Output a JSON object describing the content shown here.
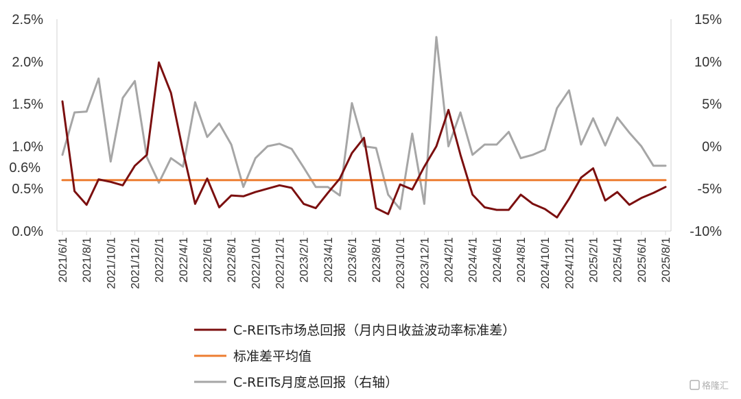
{
  "chart_data": {
    "type": "line",
    "title": "",
    "x": [
      "2021/6/1",
      "2021/7/1",
      "2021/8/1",
      "2021/9/1",
      "2021/10/1",
      "2021/11/1",
      "2021/12/1",
      "2022/1/1",
      "2022/2/1",
      "2022/3/1",
      "2022/4/1",
      "2022/5/1",
      "2022/6/1",
      "2022/7/1",
      "2022/8/1",
      "2022/9/1",
      "2022/10/1",
      "2022/11/1",
      "2022/12/1",
      "2023/1/1",
      "2023/2/1",
      "2023/3/1",
      "2023/4/1",
      "2023/5/1",
      "2023/6/1",
      "2023/7/1",
      "2023/8/1",
      "2023/9/1",
      "2023/10/1",
      "2023/11/1",
      "2023/12/1",
      "2024/1/1",
      "2024/2/1",
      "2024/3/1",
      "2024/4/1",
      "2024/5/1",
      "2024/6/1",
      "2024/7/1",
      "2024/8/1",
      "2024/9/1",
      "2024/10/1",
      "2024/11/1",
      "2024/12/1",
      "2025/1/1",
      "2025/2/1",
      "2025/3/1",
      "2025/4/1",
      "2025/5/1",
      "2025/6/1",
      "2025/7/1",
      "2025/8/1"
    ],
    "x_tick_labels": [
      "2021/6/1",
      "2021/8/1",
      "2021/10/1",
      "2021/12/1",
      "2022/2/1",
      "2022/4/1",
      "2022/6/1",
      "2022/8/1",
      "2022/10/1",
      "2022/12/1",
      "2023/2/1",
      "2023/4/1",
      "2023/6/1",
      "2023/8/1",
      "2023/10/1",
      "2023/12/1",
      "2024/2/1",
      "2024/4/1",
      "2024/6/1",
      "2024/8/1",
      "2024/10/1",
      "2024/12/1",
      "2025/2/1",
      "2025/4/1",
      "2025/6/1",
      "2025/8/1"
    ],
    "left_axis": {
      "ylim": [
        0,
        2.5
      ],
      "ticks": [
        "0.0%",
        "0.5%",
        "1.0%",
        "1.5%",
        "2.0%",
        "2.5%"
      ],
      "extra_tick": "0.6%",
      "extra_tick_value": 0.6
    },
    "right_axis": {
      "ylim": [
        -10,
        15
      ],
      "ticks": [
        "-10%",
        "-5%",
        "0%",
        "5%",
        "10%",
        "15%"
      ]
    },
    "grid": false,
    "legend_position": "bottom",
    "series": [
      {
        "name": "C-REITs市场总回报（月内日收益波动率标准差）",
        "axis": "left",
        "color": "#7b0f0f",
        "values": [
          1.53,
          0.47,
          0.31,
          0.61,
          0.58,
          0.54,
          0.77,
          0.9,
          1.99,
          1.63,
          0.94,
          0.32,
          0.62,
          0.28,
          0.42,
          0.41,
          0.46,
          0.5,
          0.54,
          0.51,
          0.32,
          0.27,
          0.45,
          0.62,
          0.92,
          1.1,
          0.27,
          0.2,
          0.55,
          0.49,
          0.76,
          1.0,
          1.43,
          0.9,
          0.43,
          0.28,
          0.25,
          0.25,
          0.43,
          0.32,
          0.26,
          0.16,
          0.38,
          0.63,
          0.74,
          0.36,
          0.46,
          0.31,
          0.39,
          0.45,
          0.52
        ]
      },
      {
        "name": "标准差平均值",
        "axis": "left",
        "color": "#ed7d31",
        "values": [
          0.6,
          0.6,
          0.6,
          0.6,
          0.6,
          0.6,
          0.6,
          0.6,
          0.6,
          0.6,
          0.6,
          0.6,
          0.6,
          0.6,
          0.6,
          0.6,
          0.6,
          0.6,
          0.6,
          0.6,
          0.6,
          0.6,
          0.6,
          0.6,
          0.6,
          0.6,
          0.6,
          0.6,
          0.6,
          0.6,
          0.6,
          0.6,
          0.6,
          0.6,
          0.6,
          0.6,
          0.6,
          0.6,
          0.6,
          0.6,
          0.6,
          0.6,
          0.6,
          0.6,
          0.6,
          0.6,
          0.6,
          0.6,
          0.6,
          0.6,
          0.6
        ]
      },
      {
        "name": "C-REITs月度总回报（右轴）",
        "axis": "right",
        "color": "#a6a6a6",
        "values": [
          -1.0,
          4.0,
          4.1,
          8.0,
          -1.8,
          5.7,
          7.7,
          -1.3,
          -4.3,
          -1.4,
          -2.4,
          5.2,
          1.1,
          2.7,
          0.2,
          -4.8,
          -1.4,
          0.0,
          0.3,
          -0.3,
          -2.5,
          -4.8,
          -4.8,
          -5.8,
          5.1,
          0.0,
          -0.2,
          -5.7,
          -7.4,
          1.5,
          -6.8,
          12.9,
          0.0,
          4.0,
          -1.0,
          0.2,
          0.2,
          1.7,
          -1.4,
          -1.0,
          -0.4,
          4.5,
          6.6,
          0.2,
          3.3,
          0.1,
          3.4,
          1.6,
          0.0,
          -2.3,
          -2.3
        ]
      }
    ]
  },
  "watermark": {
    "icon": "gelonghui-logo-icon",
    "text": "格隆汇"
  }
}
